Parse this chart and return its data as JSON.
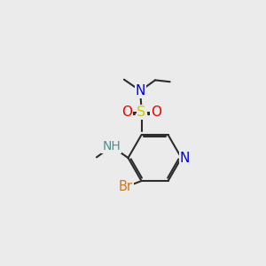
{
  "bg_color": "#EBEBEB",
  "bond_color": "#2d2d2d",
  "bond_lw": 1.5,
  "atom_colors": {
    "N": "#0000EE",
    "S": "#CCCC00",
    "O": "#EE0000",
    "Br": "#CC7722",
    "NH": "#4F8F8F",
    "C": "#2d2d2d"
  },
  "font_size": 10.5
}
